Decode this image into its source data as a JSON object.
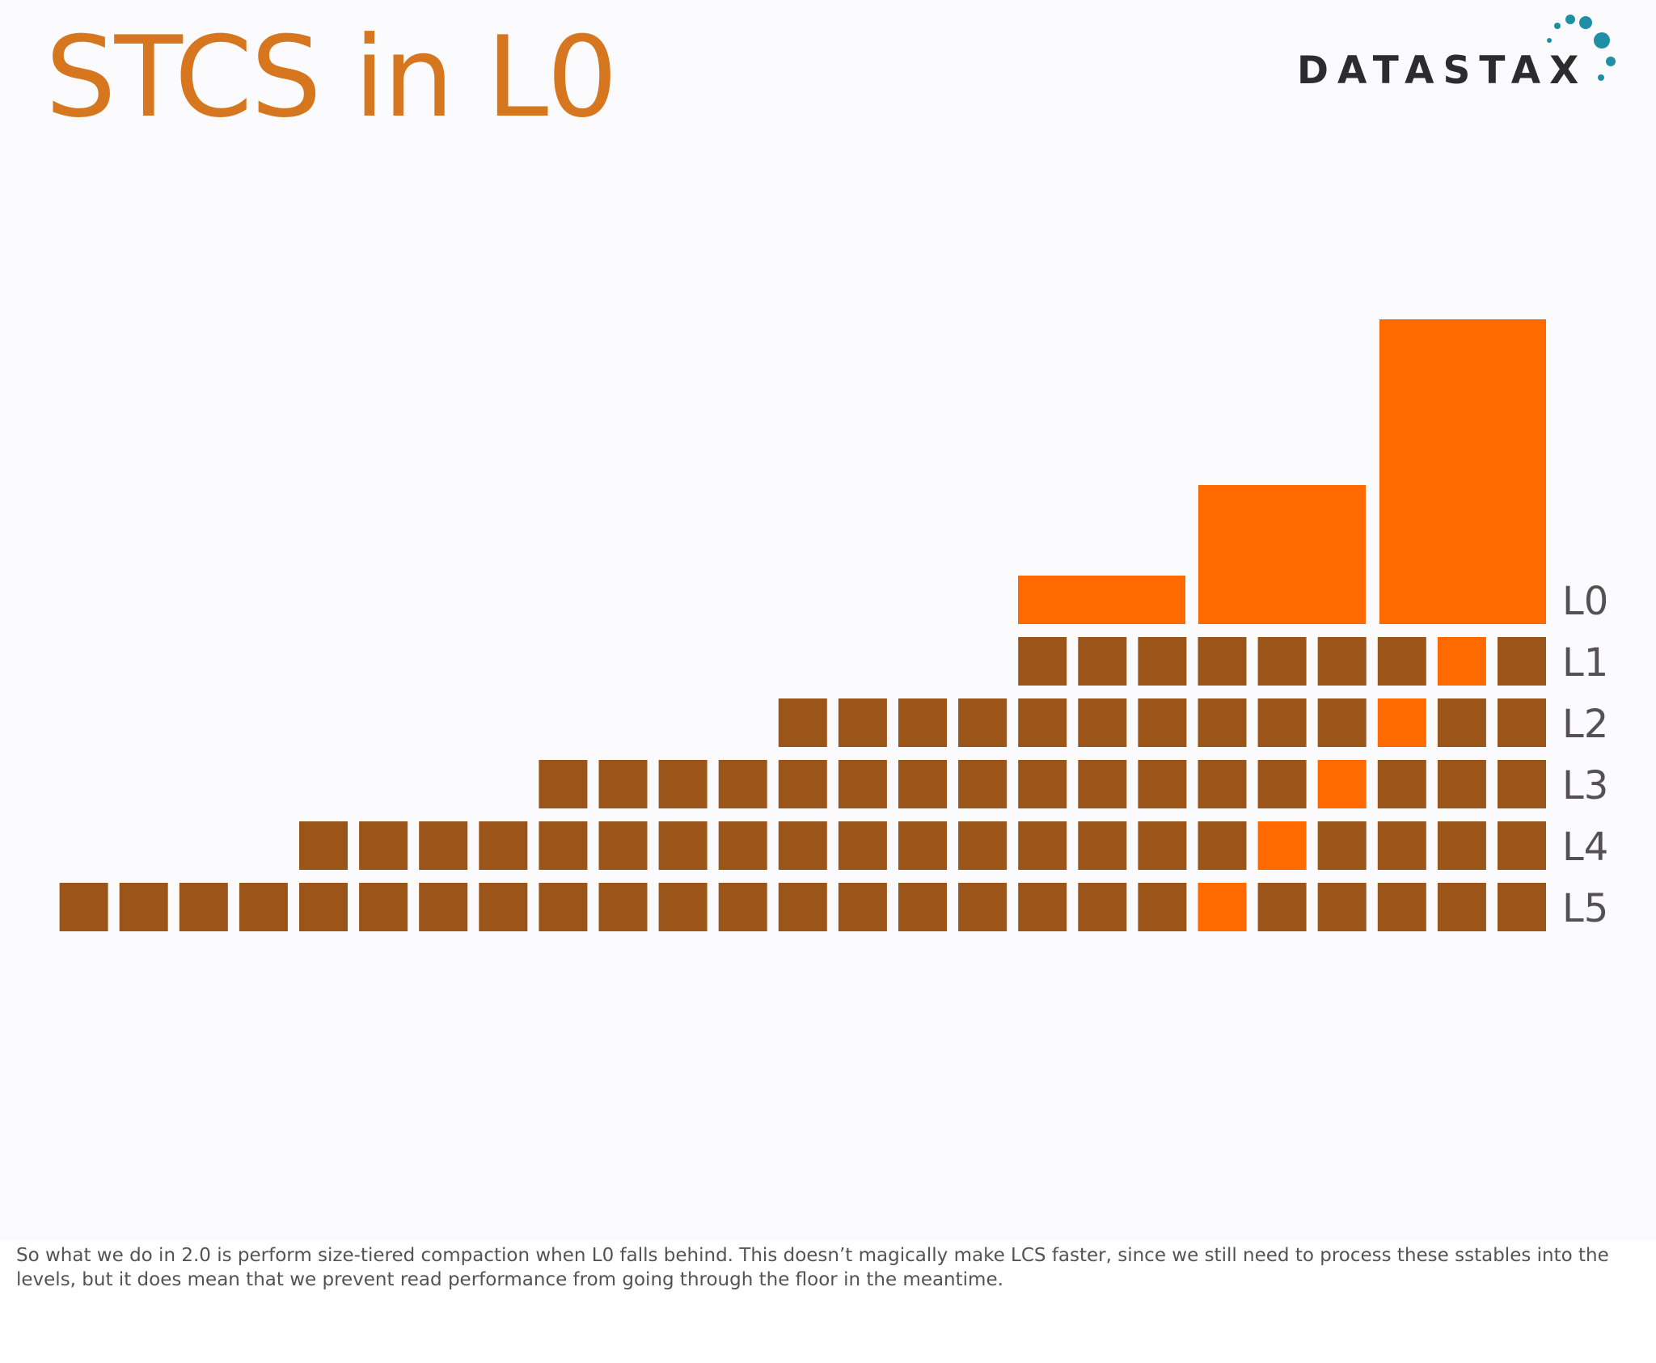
{
  "slide": {
    "title": "STCS in L0",
    "logo_text": "DATASTAX",
    "colors": {
      "title": "#d6771f",
      "sstable": "#9c5518",
      "highlight": "#ff6a00",
      "label": "#555055"
    }
  },
  "diagram": {
    "levels": [
      {
        "label": "L0",
        "tiers": [
          1,
          2,
          3
        ]
      },
      {
        "label": "L1",
        "count": 9,
        "highlight_index": 7
      },
      {
        "label": "L2",
        "count": 13,
        "highlight_index": 10
      },
      {
        "label": "L3",
        "count": 17,
        "highlight_index": 13
      },
      {
        "label": "L4",
        "count": 21,
        "highlight_index": 16
      },
      {
        "label": "L5",
        "count": 25,
        "highlight_index": 19
      }
    ]
  },
  "notes": {
    "text": "So what we do in 2.0 is perform size-tiered compaction when L0 falls behind.  This doesn’t magically make LCS faster, since we still need to process these sstables into the levels, but it does mean that we prevent read performance from going through the floor in the meantime."
  }
}
